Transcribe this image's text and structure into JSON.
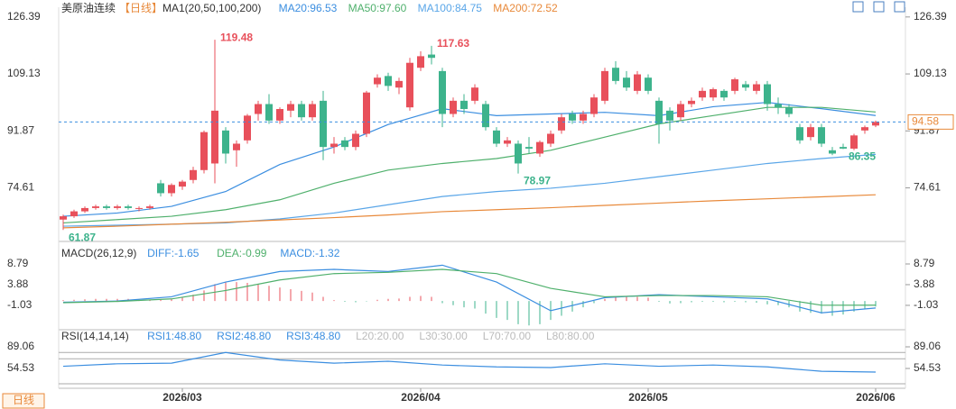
{
  "title": "美原油连续",
  "period": "【日线】",
  "button": "日线",
  "xticks": [
    {
      "value": 11,
      "label": "2026/03"
    },
    {
      "value": 33,
      "label": "2026/04"
    },
    {
      "value": 54,
      "label": "2026/05"
    },
    {
      "value": 75,
      "label": "2026/06"
    }
  ],
  "chart_data": [
    {
      "type": "candlestick",
      "indicator": "MA1(20,50,100,200)",
      "up_color": "#e8505b",
      "down_color": "#3db38c",
      "ylim": [
        59.2,
        128.8
      ],
      "yticks": [
        126.39,
        109.13,
        91.87,
        74.61
      ],
      "candles": [
        [
          65,
          66.5,
          61.87,
          66
        ],
        [
          66,
          68,
          65.5,
          67.5
        ],
        [
          67.5,
          69,
          67,
          68.5
        ],
        [
          68.5,
          69.5,
          68,
          69
        ],
        [
          69,
          69.5,
          68,
          68.5
        ],
        [
          68.5,
          69.5,
          68,
          69
        ],
        [
          69,
          69.5,
          68,
          68.5
        ],
        [
          68.5,
          69,
          67.5,
          68.5
        ],
        [
          68.5,
          69.5,
          68,
          69
        ],
        [
          76,
          77,
          72,
          73
        ],
        [
          73,
          76,
          72,
          75.5
        ],
        [
          75,
          77,
          74,
          76.5
        ],
        [
          77,
          81,
          76,
          80
        ],
        [
          80,
          92,
          79,
          91.5
        ],
        [
          82,
          119.48,
          76,
          98
        ],
        [
          92,
          93,
          82,
          85
        ],
        [
          86,
          89,
          81,
          88
        ],
        [
          89,
          97,
          88,
          96.5
        ],
        [
          97,
          101,
          95,
          100
        ],
        [
          100,
          103,
          94,
          95
        ],
        [
          95,
          99,
          94,
          98.5
        ],
        [
          98,
          101,
          96,
          100
        ],
        [
          100,
          101,
          95,
          96
        ],
        [
          96,
          101,
          95,
          100
        ],
        [
          101,
          104,
          83,
          87
        ],
        [
          87,
          90,
          85,
          88
        ],
        [
          89,
          90,
          86,
          87
        ],
        [
          87,
          92,
          86,
          91
        ],
        [
          91,
          104,
          90,
          103.5
        ],
        [
          106,
          109,
          105,
          108
        ],
        [
          108.5,
          109.5,
          104,
          105.5
        ],
        [
          105,
          108,
          103,
          107
        ],
        [
          99,
          114,
          98,
          112.5
        ],
        [
          111,
          116,
          110,
          114.5
        ],
        [
          115,
          117.63,
          112,
          114
        ],
        [
          110,
          111,
          93,
          97
        ],
        [
          97,
          102,
          96,
          101
        ],
        [
          101,
          103,
          97,
          98.5
        ],
        [
          101,
          106,
          100,
          105
        ],
        [
          100,
          101,
          92,
          93
        ],
        [
          92,
          93,
          87,
          88
        ],
        [
          88,
          90,
          87,
          89
        ],
        [
          88,
          89,
          78.97,
          82
        ],
        [
          87,
          90,
          85,
          86.5
        ],
        [
          85,
          89,
          84,
          88.5
        ],
        [
          88,
          92,
          87,
          91
        ],
        [
          92,
          97,
          91,
          96
        ],
        [
          97,
          98,
          94,
          95
        ],
        [
          95,
          98,
          94,
          97
        ],
        [
          97,
          103,
          96,
          102
        ],
        [
          101,
          111,
          100,
          110
        ],
        [
          111,
          113,
          106,
          107
        ],
        [
          108,
          110,
          104,
          105
        ],
        [
          104,
          110,
          103,
          109
        ],
        [
          108,
          109,
          103,
          104
        ],
        [
          101,
          102,
          88,
          94
        ],
        [
          98,
          99,
          92,
          95
        ],
        [
          96,
          101,
          95,
          100
        ],
        [
          100,
          102,
          99,
          101
        ],
        [
          102,
          105,
          101,
          104
        ],
        [
          102,
          105,
          101,
          104.5
        ],
        [
          104,
          104.5,
          101,
          102
        ],
        [
          104,
          108,
          103,
          107.5
        ],
        [
          106,
          107,
          104,
          105
        ],
        [
          104,
          107,
          103,
          106
        ],
        [
          106,
          107,
          98,
          100
        ],
        [
          100,
          102,
          97,
          99
        ],
        [
          99,
          100,
          96,
          97
        ],
        [
          93,
          94,
          88,
          89
        ],
        [
          90,
          94,
          89,
          93
        ],
        [
          93,
          94,
          87,
          88
        ],
        [
          86,
          87,
          84.5,
          85
        ],
        [
          87,
          88,
          86.35,
          86.5
        ],
        [
          86.5,
          91,
          86,
          90.5
        ],
        [
          92,
          93.5,
          91,
          93
        ],
        [
          93.5,
          95,
          93,
          94.58
        ]
      ],
      "series": [
        {
          "name": "MA20:96.53",
          "color": "#3b8ee0",
          "x": [
            0,
            5,
            10,
            15,
            20,
            25,
            30,
            35,
            40,
            45,
            50,
            55,
            60,
            65,
            70,
            75
          ],
          "values": [
            66,
            67,
            69,
            73.5,
            81.7,
            87,
            93.8,
            98.6,
            96.5,
            97,
            97.5,
            96.5,
            99.2,
            100.5,
            98.6,
            96.53
          ]
        },
        {
          "name": "MA50:97.60",
          "color": "#4fb06c",
          "x": [
            0,
            5,
            10,
            15,
            20,
            25,
            30,
            35,
            40,
            45,
            50,
            55,
            60,
            65,
            70,
            75
          ],
          "values": [
            64,
            65,
            66,
            68,
            71,
            76,
            80,
            82,
            83.5,
            86,
            90,
            94,
            96.5,
            99,
            99,
            97.6
          ]
        },
        {
          "name": "MA100:84.75",
          "color": "#5aa6e8",
          "x": [
            0,
            5,
            10,
            15,
            20,
            25,
            30,
            35,
            40,
            45,
            50,
            55,
            60,
            65,
            70,
            75
          ],
          "values": [
            63,
            63.3,
            63.6,
            64,
            65.2,
            67,
            69.5,
            72,
            73.5,
            74.5,
            76,
            78,
            80,
            82,
            83.5,
            84.75
          ]
        },
        {
          "name": "MA200:72.52",
          "color": "#e8893a",
          "x": [
            0,
            5,
            10,
            15,
            20,
            25,
            30,
            35,
            40,
            45,
            50,
            55,
            60,
            65,
            70,
            75
          ],
          "values": [
            62.5,
            63,
            63.6,
            64.2,
            64.9,
            65.6,
            66.4,
            67.4,
            68,
            68.6,
            69.3,
            70,
            70.7,
            71.3,
            71.9,
            72.52
          ]
        }
      ]
    },
    {
      "type": "macd",
      "indicator": "MACD(26,12,9)",
      "ylim": [
        -6.6,
        10.5
      ],
      "yticks": [
        8.79,
        3.88,
        -1.03
      ],
      "series": [
        {
          "name": "DIFF:-1.65",
          "color": "#3b8ee0",
          "x": [
            0,
            5,
            10,
            15,
            20,
            25,
            30,
            35,
            40,
            45,
            50,
            55,
            60,
            65,
            70,
            75
          ],
          "values": [
            -0.3,
            0,
            1,
            4.5,
            7,
            7.5,
            7,
            8.5,
            4.5,
            -2.3,
            0.8,
            1.5,
            1,
            0.5,
            -2.8,
            -1.65
          ]
        },
        {
          "name": "DEA:-0.99",
          "color": "#4fb06c",
          "x": [
            0,
            5,
            10,
            15,
            20,
            25,
            30,
            35,
            40,
            45,
            50,
            55,
            60,
            65,
            70,
            75
          ],
          "values": [
            -0.4,
            -0.1,
            0.5,
            2.5,
            5,
            6.5,
            6.8,
            7.5,
            6.5,
            3,
            1,
            1.3,
            1.3,
            1,
            -1,
            -0.99
          ]
        }
      ],
      "histogram_name": "MACD:-1.32",
      "histogram": [
        0.2,
        0.3,
        0.4,
        0.5,
        0.5,
        0.5,
        0.5,
        0.4,
        0.3,
        0.3,
        0.6,
        1,
        1.5,
        2.5,
        4,
        4.5,
        4.5,
        4.3,
        4,
        3.6,
        3.2,
        2.8,
        2.4,
        2,
        1,
        0.2,
        -0.2,
        -0.3,
        -0.1,
        0.3,
        0.5,
        0.6,
        1,
        1.2,
        1,
        -0.5,
        -1,
        -1.5,
        -1.8,
        -3,
        -4,
        -4.5,
        -5.5,
        -5.8,
        -5.5,
        -4.5,
        -3.5,
        -2.5,
        -1.5,
        -0.5,
        0.5,
        1,
        1.2,
        1,
        0.8,
        -0.2,
        -0.6,
        -0.5,
        -0.3,
        -0.2,
        -0.2,
        -0.3,
        -0.2,
        -0.3,
        -0.4,
        -0.8,
        -1,
        -1.5,
        -2.5,
        -2.8,
        -3,
        -3.5,
        -3.2,
        -2.5,
        -1.8,
        -1.32
      ]
    },
    {
      "type": "rsi",
      "indicator": "RSI(14,14,14)",
      "ylim": [
        24.3,
        113.5
      ],
      "yticks": [
        89.06,
        54.53
      ],
      "series": [
        {
          "name": "RSI1:48.80",
          "color": "#3b8ee0",
          "x": [
            0,
            5,
            10,
            15,
            20,
            25,
            30,
            35,
            40,
            45,
            50,
            55,
            60,
            65,
            70,
            75
          ],
          "values": [
            58,
            62,
            63,
            80,
            68,
            63,
            66,
            60,
            57,
            56,
            62,
            58,
            60,
            57,
            50,
            48.8
          ]
        },
        {
          "name": "RSI2:48.80",
          "color": "#3b8ee0"
        },
        {
          "name": "RSI3:48.80",
          "color": "#3b8ee0"
        }
      ],
      "levels": [
        {
          "value": 20,
          "label": "L20:20.00"
        },
        {
          "value": 30,
          "label": "L30:30.00"
        },
        {
          "value": 70,
          "label": "L70:70.00"
        },
        {
          "value": 80,
          "label": "L80:80.00"
        }
      ]
    }
  ]
}
